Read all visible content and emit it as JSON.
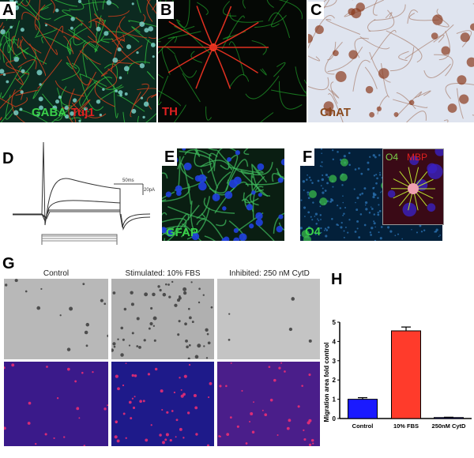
{
  "panels": {
    "A": {
      "label": "A",
      "stains": [
        "GABA",
        "Tuj1"
      ],
      "colors": [
        "#3ad14a",
        "#e02020"
      ]
    },
    "B": {
      "label": "B",
      "stains": [
        "TH"
      ],
      "colors": [
        "#e02020"
      ]
    },
    "C": {
      "label": "C",
      "stains": [
        "ChAT"
      ],
      "colors": [
        "#8a4a1e"
      ]
    },
    "D": {
      "label": "D",
      "scale_time": "50ms",
      "scale_current": "20pA"
    },
    "E": {
      "label": "E",
      "stains": [
        "GFAP"
      ],
      "colors": [
        "#3ad14a"
      ]
    },
    "F": {
      "label": "F",
      "stains": [
        "O4"
      ],
      "inset_stains": [
        "O4",
        "MBP"
      ],
      "colors": [
        "#3ad14a",
        "#e02020"
      ]
    },
    "G": {
      "label": "G",
      "conditions": [
        "Control",
        "Stimulated: 10% FBS",
        "Inhibited: 250 nM CytD"
      ]
    },
    "H": {
      "label": "H"
    }
  },
  "chart_data": {
    "type": "bar",
    "categories": [
      "Control",
      "10% FBS",
      "250nM CytD"
    ],
    "values": [
      1.0,
      4.55,
      0.05
    ],
    "errors": [
      0.08,
      0.2,
      0.02
    ],
    "colors": [
      "#1a1aff",
      "#ff3b2b",
      "#1a1aff"
    ],
    "ylabel": "Migration area fold control",
    "ylim": [
      0,
      5
    ],
    "yticks": [
      "0",
      "1",
      "2",
      "3",
      "4",
      "5"
    ]
  }
}
